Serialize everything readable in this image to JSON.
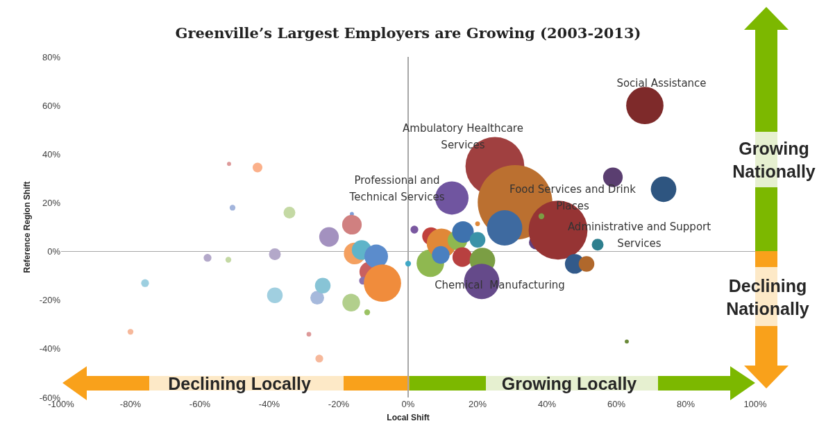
{
  "chart_data": {
    "type": "bubble",
    "title": "Greenville’s Largest Employers are Growing (2003-2013)",
    "xlabel": "Local Shift",
    "ylabel": "Reference Region Shift",
    "x": [
      -80,
      -75.8,
      -57.8,
      -51.8,
      -51.6,
      -50.6,
      -43.4,
      -38.4,
      -38.4,
      -34.2,
      -28.6,
      -26.2,
      -25.6,
      -24.6,
      -22.8,
      -16.4,
      -16.2,
      -16.2,
      -15.4,
      -13.4,
      -11.8,
      -11.2,
      -9.2,
      -13,
      -7.4,
      0,
      1.8,
      6.6,
      6.4,
      9.6,
      9.4,
      14.2,
      15.8,
      15.6,
      12.6,
      20,
      20,
      21.4,
      21.2,
      25,
      30.8,
      27.8,
      36.8,
      43.2,
      48,
      51.4,
      54.6,
      59,
      68.2,
      73.6,
      63,
      38.4
    ],
    "values": [
      -33,
      -13,
      -2.6,
      -3.4,
      36,
      18,
      34.5,
      -1.1,
      -18,
      16,
      -34,
      -19,
      -44,
      -14,
      6,
      -21,
      15.4,
      11,
      -0.8,
      0.6,
      -25,
      -8.3,
      -2,
      -12,
      -13,
      -5,
      9,
      6.3,
      -4.8,
      3.4,
      -1.4,
      4.6,
      8,
      -2.3,
      22,
      4.8,
      11.4,
      -3.7,
      -12.3,
      35,
      20.2,
      9.7,
      3.7,
      8.8,
      -5.1,
      -5.1,
      2.8,
      30.5,
      60,
      25.6,
      -37,
      14.5
    ],
    "sizes": [
      0.006,
      0.011,
      0.011,
      0.006,
      0.003,
      0.006,
      0.017,
      0.025,
      0.044,
      0.025,
      0.004,
      0.034,
      0.011,
      0.044,
      0.069,
      0.056,
      0.003,
      0.069,
      0.084,
      0.069,
      0.006,
      0.069,
      0.1,
      0.011,
      0.25,
      0.006,
      0.011,
      0.056,
      0.136,
      0.156,
      0.056,
      0.069,
      0.084,
      0.069,
      0.2,
      0.044,
      0.004,
      0.117,
      0.224,
      0.623,
      1,
      0.224,
      0.034,
      0.623,
      0.069,
      0.044,
      0.025,
      0.069,
      0.25,
      0.117,
      0.003,
      0.006
    ],
    "colors": [
      "#f6b89b",
      "#9dcfe0",
      "#b3a8c9",
      "#c4d9a4",
      "#dd9999",
      "#a3b5dc",
      "#fbb08a",
      "#b3a8c9",
      "#a0cfe0",
      "#c4d9a4",
      "#dd9999",
      "#a6b9dc",
      "#f6b89b",
      "#88c4d6",
      "#a391bf",
      "#b2cf8c",
      "#7f9dd6",
      "#d08080",
      "#f4a060",
      "#5fb4c9",
      "#9bc263",
      "#c96060",
      "#5b8ccc",
      "#8a72b0",
      "#f08c3c",
      "#40a8c6",
      "#7a58a0",
      "#c0403c",
      "#8fb850",
      "#e08838",
      "#4a80c0",
      "#8fb850",
      "#3e72ae",
      "#b84040",
      "#7055a0",
      "#3a92a8",
      "#e08838",
      "#7b9e44",
      "#654a8a",
      "#a04040",
      "#bb7030",
      "#3e6aa0",
      "#604080",
      "#963434",
      "#325a8a",
      "#b0682c",
      "#2e7f8e",
      "#5a3e70",
      "#7e2a2a",
      "#2e5580",
      "#6b8a3a",
      "#7b9e44"
    ],
    "xlim": [
      -100,
      100
    ],
    "ylim": [
      -60,
      80
    ],
    "xticks": [
      {
        "value": -100,
        "label": "-100%"
      },
      {
        "value": -80,
        "label": "-80%"
      },
      {
        "value": -60,
        "label": "-60%"
      },
      {
        "value": -40,
        "label": "-40%"
      },
      {
        "value": -20,
        "label": "-20%"
      },
      {
        "value": 0,
        "label": "0%"
      },
      {
        "value": 20,
        "label": "20%"
      },
      {
        "value": 40,
        "label": "40%"
      },
      {
        "value": 60,
        "label": "60%"
      },
      {
        "value": 80,
        "label": "80%"
      },
      {
        "value": 100,
        "label": "100%"
      }
    ],
    "yticks": [
      {
        "value": -60,
        "label": "-60%"
      },
      {
        "value": -40,
        "label": "-40%"
      },
      {
        "value": -20,
        "label": "-20%"
      },
      {
        "value": 0,
        "label": "0%"
      },
      {
        "value": 20,
        "label": "20%"
      },
      {
        "value": 40,
        "label": "40%"
      },
      {
        "value": 60,
        "label": "60%"
      },
      {
        "value": 80,
        "label": "80%"
      }
    ],
    "annotations": [
      "Social Assistance",
      "Ambulatory Healthcare\nServices",
      "Professional and\nTechnical Services",
      "Food Services and Drink\nPlaces",
      "Administrative and Support\nServices",
      "Chemical  Manufacturing",
      "Growing\nNationally",
      "Declining\nNationally",
      "Declining Locally",
      "Growing Locally"
    ]
  }
}
